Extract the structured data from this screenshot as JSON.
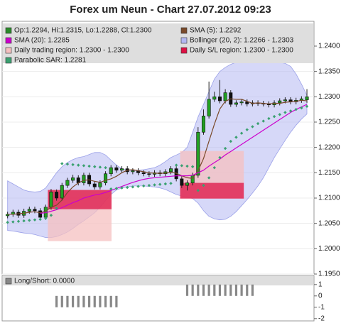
{
  "chart_data": [
    {
      "type": "candlestick",
      "title": "Forex um Neun - Chart 27.07.2012 09:23",
      "name": "Op:1.2294, Hi:1.2315, Lo:1.2288, Cl:1.2300",
      "color": "#2a8a2a",
      "up_color": "#22a022",
      "down_color": "#111111",
      "open": [
        1.2065,
        1.2068,
        1.2072,
        1.2066,
        1.2074,
        1.2078,
        1.2075,
        1.2062,
        1.2082,
        1.2112,
        1.21,
        1.2125,
        1.2135,
        1.214,
        1.213,
        1.2145,
        1.2128,
        1.2122,
        1.213,
        1.2148,
        1.216,
        1.2155,
        1.2158,
        1.2152,
        1.2154,
        1.215,
        1.2148,
        1.2147,
        1.215,
        1.2148,
        1.2152,
        1.2158,
        1.2138,
        1.2125,
        1.213,
        1.2145,
        1.223,
        1.2262,
        1.2295,
        1.23,
        1.2292,
        1.2308,
        1.2285,
        1.2288,
        1.229,
        1.2286,
        1.2288,
        1.2287,
        1.2286,
        1.2284,
        1.2288,
        1.2292,
        1.2294,
        1.229,
        1.2293,
        1.2294
      ],
      "high": [
        1.2073,
        1.2077,
        1.2077,
        1.2079,
        1.2083,
        1.2083,
        1.208,
        1.2087,
        1.2118,
        1.2117,
        1.213,
        1.214,
        1.2146,
        1.2145,
        1.215,
        1.215,
        1.2133,
        1.2135,
        1.2153,
        1.2165,
        1.2165,
        1.2163,
        1.2163,
        1.2159,
        1.2159,
        1.2155,
        1.2153,
        1.2155,
        1.2155,
        1.2157,
        1.2163,
        1.2163,
        1.2143,
        1.2135,
        1.215,
        1.224,
        1.2275,
        1.233,
        1.231,
        1.2333,
        1.2315,
        1.2313,
        1.2293,
        1.2295,
        1.2295,
        1.2293,
        1.2293,
        1.2292,
        1.2291,
        1.2293,
        1.2297,
        1.2299,
        1.2299,
        1.2298,
        1.2301,
        1.2315
      ],
      "low": [
        1.206,
        1.2063,
        1.2061,
        1.2061,
        1.2069,
        1.207,
        1.2057,
        1.2057,
        1.2077,
        1.2095,
        1.2095,
        1.212,
        1.213,
        1.2125,
        1.2125,
        1.2123,
        1.2117,
        1.2117,
        1.2125,
        1.2143,
        1.215,
        1.215,
        1.2147,
        1.2147,
        1.2145,
        1.2143,
        1.2142,
        1.2142,
        1.2143,
        1.2143,
        1.2147,
        1.2133,
        1.212,
        1.2115,
        1.2125,
        1.214,
        1.2225,
        1.2257,
        1.229,
        1.2287,
        1.2287,
        1.228,
        1.228,
        1.2283,
        1.2281,
        1.2281,
        1.2282,
        1.2281,
        1.2279,
        1.2279,
        1.2283,
        1.2287,
        1.2285,
        1.2285,
        1.2288,
        1.2288
      ],
      "close": [
        1.2068,
        1.2072,
        1.2066,
        1.2074,
        1.2078,
        1.2075,
        1.2062,
        1.2082,
        1.2112,
        1.21,
        1.2125,
        1.2135,
        1.214,
        1.213,
        1.2145,
        1.2128,
        1.2122,
        1.213,
        1.2148,
        1.216,
        1.2155,
        1.2158,
        1.2152,
        1.2154,
        1.215,
        1.2148,
        1.2147,
        1.215,
        1.2148,
        1.2152,
        1.2158,
        1.2138,
        1.2125,
        1.213,
        1.2145,
        1.223,
        1.2262,
        1.2295,
        1.23,
        1.2292,
        1.2308,
        1.2285,
        1.2288,
        1.229,
        1.2286,
        1.2288,
        1.2287,
        1.2286,
        1.2284,
        1.2288,
        1.2292,
        1.2294,
        1.229,
        1.2293,
        1.2296,
        1.23
      ],
      "series": [
        {
          "name": "SMA (5): 1.2292",
          "kind": "line",
          "color": "#7a4a2a",
          "values": [
            1.2068,
            1.2068,
            1.2069,
            1.207,
            1.2072,
            1.2073,
            1.2071,
            1.2074,
            1.2082,
            1.2086,
            1.2096,
            1.2111,
            1.2122,
            1.213,
            1.2135,
            1.2136,
            1.2133,
            1.2131,
            1.2135,
            1.2138,
            1.2143,
            1.215,
            1.2155,
            1.2156,
            1.2154,
            1.2152,
            1.215,
            1.2149,
            1.2149,
            1.2149,
            1.2151,
            1.2149,
            1.2144,
            1.214,
            1.2139,
            1.2154,
            1.2178,
            1.2212,
            1.2246,
            1.2276,
            1.2291,
            1.2296,
            1.2295,
            1.2295,
            1.2291,
            1.2287,
            1.2288,
            1.2287,
            1.2286,
            1.2287,
            1.2287,
            1.2289,
            1.229,
            1.2291,
            1.2293,
            1.2292
          ]
        },
        {
          "name": "SMA (20): 1.2285",
          "kind": "line",
          "color": "#cc00cc",
          "values": [
            null,
            null,
            null,
            null,
            null,
            null,
            1.207,
            1.2071,
            1.2074,
            1.2077,
            1.2081,
            1.2086,
            1.2091,
            1.2095,
            1.21,
            1.2103,
            1.2106,
            1.2108,
            1.2111,
            1.2115,
            1.2119,
            1.2123,
            1.2127,
            1.2131,
            1.2134,
            1.2137,
            1.2139,
            1.214,
            1.2141,
            1.2142,
            1.2143,
            1.2144,
            1.2144,
            1.2144,
            1.2145,
            1.215,
            1.2155,
            1.2163,
            1.217,
            1.2177,
            1.2185,
            1.2192,
            1.2199,
            1.2206,
            1.2213,
            1.222,
            1.2227,
            1.2234,
            1.2241,
            1.2248,
            1.2255,
            1.2262,
            1.2269,
            1.2275,
            1.228,
            1.2285
          ]
        },
        {
          "name": "Bollinger (20, 2): 1.2266 - 1.2303",
          "kind": "band",
          "color": "#b4b8f2",
          "upper": [
            1.2134,
            1.2128,
            1.2122,
            1.2116,
            1.2113,
            1.2112,
            1.2113,
            1.212,
            1.2135,
            1.215,
            1.2162,
            1.217,
            1.2176,
            1.218,
            1.2182,
            1.2186,
            1.219,
            1.219,
            1.2185,
            1.2175,
            1.2165,
            1.2158,
            1.2155,
            1.2155,
            1.2155,
            1.2156,
            1.2158,
            1.216,
            1.2165,
            1.2172,
            1.218,
            1.2185,
            1.219,
            1.22,
            1.223,
            1.226,
            1.2285,
            1.231,
            1.2335,
            1.235,
            1.2358,
            1.2364,
            1.2368,
            1.2369,
            1.2369,
            1.2369,
            1.2369,
            1.2369,
            1.2369,
            1.2369,
            1.2368,
            1.2366,
            1.236,
            1.2345,
            1.2325,
            1.2303
          ],
          "lower": [
            1.2036,
            1.2035,
            1.2033,
            1.2031,
            1.203,
            1.2028,
            1.2025,
            1.2022,
            1.2022,
            1.2024,
            1.2028,
            1.2033,
            1.204,
            1.2048,
            1.2055,
            1.2063,
            1.2071,
            1.2082,
            1.2095,
            1.2107,
            1.2116,
            1.212,
            1.2122,
            1.2124,
            1.2124,
            1.2124,
            1.2123,
            1.2122,
            1.212,
            1.2117,
            1.2112,
            1.2107,
            1.2104,
            1.2102,
            1.2099,
            1.209,
            1.2075,
            1.2064,
            1.2059,
            1.2057,
            1.2058,
            1.2064,
            1.2073,
            1.2085,
            1.2097,
            1.211,
            1.2124,
            1.214,
            1.216,
            1.218,
            1.2197,
            1.2214,
            1.223,
            1.2244,
            1.2256,
            1.2266
          ]
        },
        {
          "name": "Daily trading region: 1.2300 - 1.2300",
          "kind": "region",
          "color": "#f6c0c0",
          "regions": [
            {
              "x": [
                7.4,
                19.1
              ],
              "y": [
                1.2015,
                1.2116
              ]
            },
            {
              "x": [
                31.7,
                43.4
              ],
              "y": [
                1.2099,
                1.2193
              ]
            }
          ]
        },
        {
          "name": "Daily S/L region: 1.2300 - 1.2300",
          "kind": "region",
          "color": "#dd1144",
          "regions": [
            {
              "x": [
                7.4,
                19.1
              ],
              "y": [
                1.2078,
                1.2116
              ]
            },
            {
              "x": [
                31.7,
                43.4
              ],
              "y": [
                1.2099,
                1.213
              ]
            }
          ]
        },
        {
          "name": "Parabolic SAR: 1.2281",
          "kind": "dots",
          "color": "#3aa070",
          "values": [
            1.2052,
            1.2053,
            1.2054,
            1.2055,
            1.2056,
            1.2057,
            1.2058,
            1.206,
            1.2066,
            1.208,
            1.2168,
            1.2167,
            1.2166,
            1.2165,
            1.2164,
            1.2163,
            1.2162,
            1.2161,
            1.216,
            1.2118,
            1.2119,
            1.212,
            1.2121,
            1.2122,
            1.2123,
            1.2124,
            1.2125,
            1.2126,
            1.2127,
            1.2128,
            1.2129,
            1.2165,
            1.2164,
            1.2163,
            1.2162,
            1.2115,
            1.2125,
            1.214,
            1.216,
            1.218,
            1.2198,
            1.2212,
            1.222,
            1.2228,
            1.2235,
            1.2241,
            1.2247,
            1.2252,
            1.2257,
            1.2261,
            1.2265,
            1.2269,
            1.2272,
            1.2275,
            1.2278,
            1.2281
          ]
        }
      ],
      "ylim": [
        1.195,
        1.2449
      ],
      "yticks": [
        {
          "value": 1.195,
          "label": "1.1950"
        },
        {
          "value": 1.2,
          "label": "1.2000"
        },
        {
          "value": 1.205,
          "label": "1.2050"
        },
        {
          "value": 1.21,
          "label": "1.2100"
        },
        {
          "value": 1.215,
          "label": "1.2150"
        },
        {
          "value": 1.22,
          "label": "1.2200"
        },
        {
          "value": 1.225,
          "label": "1.2250"
        },
        {
          "value": 1.23,
          "label": "1.2300"
        },
        {
          "value": 1.235,
          "label": "1.2350"
        },
        {
          "value": 1.24,
          "label": "1.2400"
        }
      ],
      "grid": true
    },
    {
      "type": "bar",
      "title": "Long/Short: 0.0000",
      "color": "#888888",
      "values": [
        0,
        0,
        0,
        0,
        0,
        0,
        0,
        0,
        0,
        -1,
        -1,
        -1,
        -1,
        -1,
        -1,
        -1,
        -1,
        -1,
        -1,
        -1,
        -1,
        0,
        0,
        0,
        0,
        0,
        0,
        0,
        0,
        0,
        0,
        0,
        0,
        1,
        1,
        1,
        1,
        1,
        1,
        1,
        1,
        1,
        1,
        1,
        1,
        1,
        0,
        0,
        0,
        0,
        0,
        0,
        0,
        0,
        0,
        0
      ],
      "ylim": [
        -2.2,
        1.8
      ],
      "yticks": [
        -2,
        -1,
        0,
        1
      ],
      "grid": true
    }
  ]
}
